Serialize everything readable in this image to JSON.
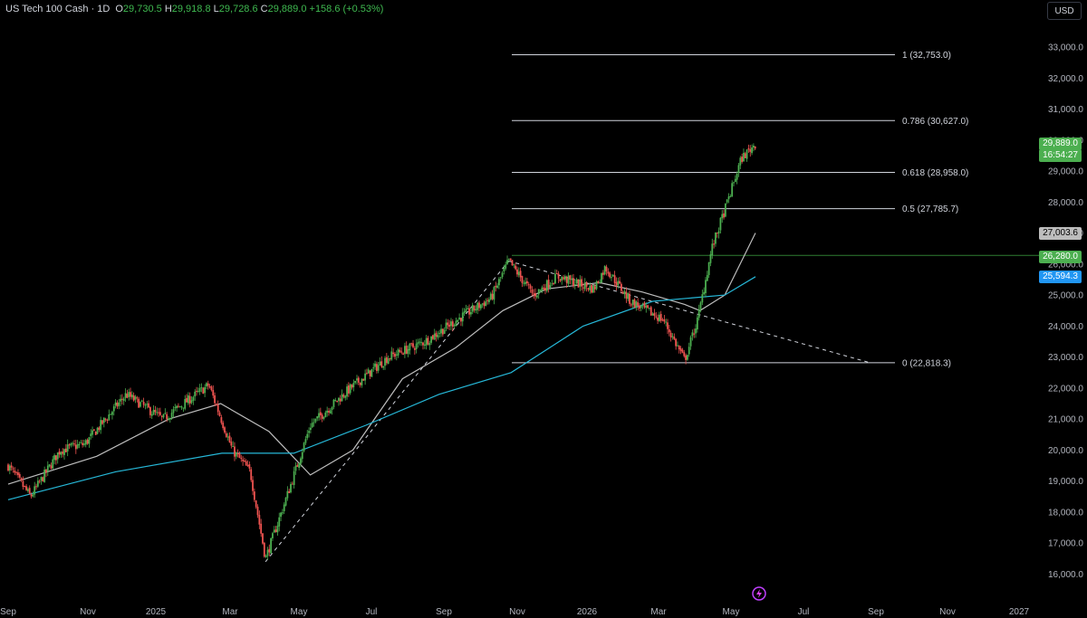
{
  "header": {
    "symbol": "US Tech 100 Cash · 1D",
    "open_label": "O",
    "open": "29,730.5",
    "high_label": "H",
    "high": "29,918.8",
    "low_label": "L",
    "low": "29,728.6",
    "close_label": "C",
    "close": "29,889.0",
    "change": "+158.6 (+0.53%)"
  },
  "currency_button": "USD",
  "price_tags": {
    "last": "29,889.0",
    "countdown": "16:54:27",
    "ma_fast": "27,003.6",
    "line_level": "26,280.0",
    "ma_slow": "25,594.3"
  },
  "colors": {
    "up": "#26a69a",
    "up_body": "#4caf50",
    "down": "#ef5350",
    "ma_fast": "#bdbdbd",
    "ma_slow": "#26b8d8",
    "fib": "#d1d4dc",
    "level_line": "#2e7d32",
    "background": "#000000"
  },
  "chart_data": {
    "type": "candlestick",
    "symbol": "US Tech 100 Cash",
    "interval": "1D",
    "currency": "USD",
    "x_ticks": [
      "Sep",
      "Nov",
      "2025",
      "Mar",
      "May",
      "Jul",
      "Sep",
      "Nov",
      "2026",
      "Mar",
      "May",
      "Jul",
      "Sep",
      "Nov",
      "2027"
    ],
    "y_ticks": [
      "33,000.0",
      "32,000.0",
      "31,000.0",
      "30,000.0",
      "29,000.0",
      "28,000.0",
      "27,000.0",
      "26,000.0",
      "25,000.0",
      "24,000.0",
      "23,000.0",
      "22,000.0",
      "21,000.0",
      "20,000.0",
      "19,000.0",
      "18,000.0",
      "17,000.0",
      "16,000.0"
    ],
    "ylim": [
      15800,
      33500
    ],
    "price_path": [
      [
        "2024-09-01",
        19500
      ],
      [
        "2024-09-20",
        18500
      ],
      [
        "2024-10-15",
        20000
      ],
      [
        "2024-11-05",
        20200
      ],
      [
        "2024-12-10",
        21800
      ],
      [
        "2025-01-10",
        21000
      ],
      [
        "2025-02-18",
        22100
      ],
      [
        "2025-03-10",
        20000
      ],
      [
        "2025-03-25",
        19300
      ],
      [
        "2025-04-07",
        16500
      ],
      [
        "2025-04-25",
        18500
      ],
      [
        "2025-05-15",
        20800
      ],
      [
        "2025-06-15",
        21900
      ],
      [
        "2025-07-20",
        23000
      ],
      [
        "2025-08-20",
        23500
      ],
      [
        "2025-09-20",
        24300
      ],
      [
        "2025-10-15",
        24900
      ],
      [
        "2025-10-30",
        26100
      ],
      [
        "2025-11-20",
        25000
      ],
      [
        "2025-12-10",
        25600
      ],
      [
        "2026-01-10",
        25200
      ],
      [
        "2026-01-20",
        25900
      ],
      [
        "2026-02-10",
        24800
      ],
      [
        "2026-03-10",
        24200
      ],
      [
        "2026-03-28",
        22900
      ],
      [
        "2026-04-08",
        24200
      ],
      [
        "2026-04-20",
        26500
      ],
      [
        "2026-05-05",
        28200
      ],
      [
        "2026-05-15",
        29400
      ],
      [
        "2026-05-27",
        29889
      ]
    ],
    "fibonacci": [
      {
        "label": "1 (32,753.0)",
        "price": 32753.0
      },
      {
        "label": "0.786 (30,627.0)",
        "price": 30627.0
      },
      {
        "label": "0.618 (28,958.0)",
        "price": 28958.0
      },
      {
        "label": "0.5 (27,785.7)",
        "price": 27785.7
      },
      {
        "label": "0 (22,818.3)",
        "price": 22818.3
      }
    ],
    "horizontal_level": 26280.0,
    "trendlines": [
      {
        "from": [
          "2025-04-07",
          16400
        ],
        "to": [
          "2025-10-30",
          26100
        ],
        "style": "dashed"
      },
      {
        "from": [
          "2025-10-30",
          26100
        ],
        "to": [
          "2026-09-01",
          22818.3
        ],
        "style": "dashed"
      }
    ],
    "moving_averages": [
      {
        "last": 27003.6,
        "color": "#bdbdbd",
        "path": [
          [
            "2024-09-01",
            18900
          ],
          [
            "2024-11-15",
            19800
          ],
          [
            "2025-01-15",
            21000
          ],
          [
            "2025-02-28",
            21500
          ],
          [
            "2025-04-10",
            20600
          ],
          [
            "2025-05-15",
            19200
          ],
          [
            "2025-06-20",
            20000
          ],
          [
            "2025-08-01",
            22300
          ],
          [
            "2025-09-15",
            23300
          ],
          [
            "2025-10-25",
            24500
          ],
          [
            "2025-12-01",
            25200
          ],
          [
            "2026-01-15",
            25400
          ],
          [
            "2026-02-20",
            25100
          ],
          [
            "2026-03-28",
            24700
          ],
          [
            "2026-04-10",
            24500
          ],
          [
            "2026-05-01",
            25000
          ],
          [
            "2026-05-27",
            27003.6
          ]
        ]
      },
      {
        "last": 25594.3,
        "color": "#26b8d8",
        "path": [
          [
            "2024-09-01",
            18400
          ],
          [
            "2024-12-01",
            19300
          ],
          [
            "2025-03-01",
            19900
          ],
          [
            "2025-05-01",
            19900
          ],
          [
            "2025-07-01",
            20800
          ],
          [
            "2025-09-01",
            21800
          ],
          [
            "2025-11-01",
            22500
          ],
          [
            "2026-01-01",
            24000
          ],
          [
            "2026-03-01",
            24800
          ],
          [
            "2026-05-01",
            25000
          ],
          [
            "2026-05-27",
            25594.3
          ]
        ]
      }
    ]
  }
}
